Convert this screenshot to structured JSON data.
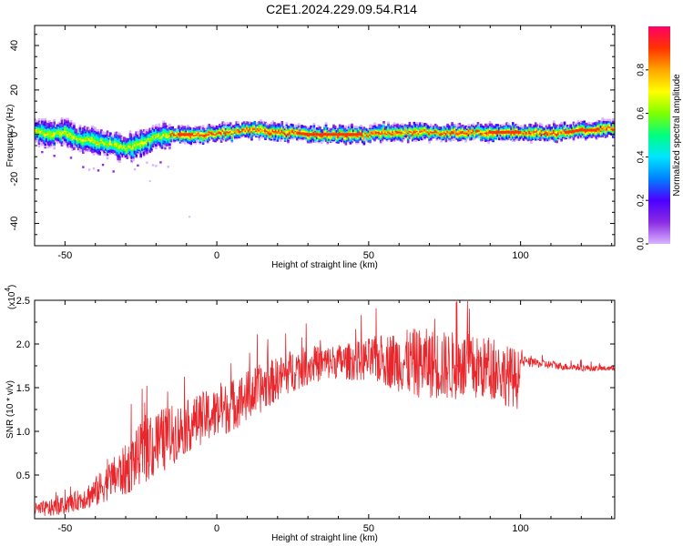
{
  "title": "C2E1.2024.229.09.54.R14",
  "colors": {
    "line": "#e8262b",
    "colormap": [
      "#d9b3ff",
      "#8a2be2",
      "#4b00ff",
      "#0080ff",
      "#00e6ff",
      "#00ff7f",
      "#80ff00",
      "#ffff00",
      "#ffa500",
      "#ff3300",
      "#ff0066"
    ]
  },
  "chart_data": [
    {
      "type": "heatmap",
      "title": "",
      "xlabel": "Height of straight line (km)",
      "ylabel": "Frequency (Hz)",
      "xlim": [
        -60,
        131
      ],
      "ylim": [
        -50,
        49
      ],
      "xticks": [
        -50,
        0,
        50,
        100
      ],
      "xtick_labels": [
        "-50",
        "0",
        "50",
        "100"
      ],
      "yticks": [
        -40,
        -20,
        0,
        20,
        40
      ],
      "ytick_labels": [
        "-40",
        "-20",
        "0",
        "20",
        "40"
      ],
      "colorbar": {
        "label": "Normalized spectral amplitude",
        "range": [
          0,
          1
        ],
        "ticks": [
          0.0,
          0.2,
          0.4,
          0.6,
          0.8
        ],
        "tick_labels": [
          "0.0",
          "0.2",
          "0.4",
          "0.6",
          "0.8"
        ],
        "placement": "right"
      },
      "ridge": {
        "x": [
          -60,
          -55,
          -50,
          -45,
          -40,
          -35,
          -30,
          -25,
          -20,
          -15,
          -10,
          -5,
          0,
          5,
          10,
          15,
          20,
          25,
          30,
          35,
          40,
          45,
          50,
          55,
          60,
          65,
          70,
          75,
          80,
          85,
          90,
          95,
          100,
          105,
          110,
          115,
          120,
          125,
          131
        ],
        "y": [
          2,
          0,
          1,
          -2,
          -3,
          -4,
          -6,
          -4,
          -1,
          0,
          0,
          0,
          1,
          1,
          2,
          2,
          1,
          1,
          0,
          0,
          0,
          0,
          0,
          1,
          1,
          1,
          1,
          1,
          1,
          1,
          1,
          1,
          1,
          1,
          1,
          1,
          2,
          2,
          3
        ]
      },
      "grid": false
    },
    {
      "type": "line",
      "title": "",
      "xlabel": "Height of straight line (km)",
      "ylabel": "SNR (10 * v/v)",
      "multiplier_label": "(x10",
      "multiplier_exponent": "4",
      "xlim": [
        -60,
        131
      ],
      "ylim": [
        0,
        2.5
      ],
      "xticks": [
        -50,
        0,
        50,
        100
      ],
      "xtick_labels": [
        "-50",
        "0",
        "50",
        "100"
      ],
      "yticks": [
        0.5,
        1.0,
        1.5,
        2.0,
        2.5
      ],
      "ytick_labels": [
        "0.5",
        "1.0",
        "1.5",
        "2.0",
        "2.5"
      ],
      "series": [
        {
          "x": [
            -60,
            -55,
            -50,
            -45,
            -40,
            -35,
            -30,
            -25,
            -20,
            -15,
            -10,
            -5,
            0,
            5,
            10,
            15,
            20,
            25,
            30,
            35,
            40,
            45,
            50,
            55,
            60,
            65,
            70,
            75,
            80,
            85,
            90,
            95,
            99,
            100,
            105,
            110,
            115,
            120,
            125,
            131
          ],
          "y_mean": [
            0.1,
            0.12,
            0.15,
            0.22,
            0.3,
            0.45,
            0.55,
            0.75,
            0.85,
            0.95,
            1.05,
            1.15,
            1.2,
            1.3,
            1.4,
            1.5,
            1.6,
            1.7,
            1.75,
            1.78,
            1.8,
            1.8,
            1.82,
            1.82,
            1.8,
            1.78,
            1.78,
            1.75,
            1.75,
            1.72,
            1.72,
            1.65,
            1.6,
            1.8,
            1.78,
            1.76,
            1.74,
            1.73,
            1.72,
            1.72
          ],
          "y_spread": [
            0.08,
            0.1,
            0.1,
            0.12,
            0.18,
            0.22,
            0.3,
            0.35,
            0.4,
            0.35,
            0.3,
            0.3,
            0.3,
            0.3,
            0.3,
            0.28,
            0.25,
            0.25,
            0.22,
            0.2,
            0.2,
            0.22,
            0.25,
            0.3,
            0.35,
            0.4,
            0.4,
            0.4,
            0.4,
            0.38,
            0.35,
            0.35,
            0.35,
            0.06,
            0.05,
            0.05,
            0.04,
            0.04,
            0.03,
            0.03
          ]
        }
      ],
      "grid": false
    }
  ]
}
